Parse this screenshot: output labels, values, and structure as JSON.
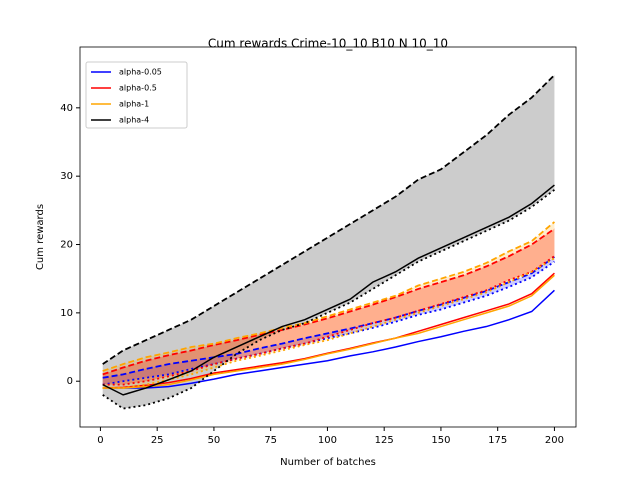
{
  "chart_data": {
    "type": "line",
    "title": "Cum rewards Crime-10_10 B10 N 10_10",
    "x_label": "Number of batches",
    "y_label": "Cum rewards",
    "x": [
      1,
      10,
      20,
      30,
      40,
      50,
      60,
      70,
      80,
      90,
      100,
      110,
      120,
      130,
      140,
      150,
      160,
      170,
      180,
      190,
      200
    ],
    "series": [
      {
        "name": "alpha-0.05",
        "color": "#0000ff",
        "values": [
          -1,
          -1,
          -1,
          -0.8,
          -0.3,
          0.3,
          1,
          1.5,
          2,
          2.5,
          3,
          3.7,
          4.3,
          5,
          5.8,
          6.5,
          7.3,
          8,
          9,
          10.2,
          13.3
        ],
        "upper": [
          0.5,
          1,
          1.8,
          2.5,
          3,
          3.5,
          4,
          4.8,
          5.5,
          6.3,
          7,
          7.7,
          8.5,
          9.3,
          10.3,
          11.2,
          12.2,
          13.2,
          14.5,
          15.8,
          18.2
        ],
        "lower": [
          -0.5,
          0,
          0.5,
          1,
          1.8,
          2.5,
          3.3,
          4,
          4.8,
          5.5,
          6.3,
          7,
          7.8,
          8.7,
          9.7,
          10.5,
          11.5,
          12.5,
          13.8,
          15.2,
          17.5
        ]
      },
      {
        "name": "alpha-0.5",
        "color": "#ff0000",
        "values": [
          -1,
          -0.9,
          -0.6,
          -0.2,
          0.4,
          1.2,
          1.7,
          2.2,
          2.7,
          3.3,
          4.1,
          4.8,
          5.6,
          6.3,
          7.3,
          8.3,
          9.3,
          10.3,
          11.3,
          12.8,
          15.8
        ],
        "upper": [
          1,
          2,
          3,
          3.8,
          4.5,
          5.3,
          6,
          6.8,
          7.5,
          8.3,
          9.2,
          10.2,
          11.2,
          12.3,
          13.5,
          14.5,
          15.5,
          16.8,
          18.3,
          20,
          22.3
        ],
        "lower": [
          -0.5,
          -0.5,
          0,
          0.7,
          1.5,
          2.5,
          3.3,
          4,
          4.8,
          5.5,
          6.5,
          7.5,
          8.5,
          9.3,
          10.3,
          11.3,
          12.3,
          13.3,
          14.8,
          16,
          18.3
        ]
      },
      {
        "name": "alpha-1",
        "color": "#ffa500",
        "values": [
          -1,
          -1,
          -0.8,
          -0.5,
          0.2,
          1,
          1.5,
          2,
          2.5,
          3.2,
          4,
          4.7,
          5.5,
          6.3,
          7,
          8,
          9,
          10,
          11,
          12.5,
          15.5
        ],
        "upper": [
          1.5,
          2.5,
          3.5,
          4.2,
          5,
          5.5,
          6.3,
          7,
          7.8,
          8.5,
          9.5,
          10.5,
          11.5,
          12.5,
          14,
          15,
          16,
          17.3,
          19,
          20.5,
          23.3
        ],
        "lower": [
          -1,
          -1,
          -0.5,
          0.2,
          1,
          2,
          3,
          3.7,
          4.5,
          5.3,
          6,
          7,
          8,
          9,
          10,
          11,
          12,
          13,
          14.5,
          16,
          18
        ]
      },
      {
        "name": "alpha-4",
        "color": "#000000",
        "values": [
          -0.5,
          -2,
          -1,
          0.2,
          1.5,
          3.5,
          5,
          6.5,
          8,
          9,
          10.5,
          12,
          14.5,
          16,
          18,
          19.5,
          21,
          22.5,
          24,
          26,
          28.7
        ],
        "upper": [
          2.5,
          4.5,
          6,
          7.5,
          9,
          11,
          13,
          15,
          17,
          19,
          21,
          23,
          25,
          27,
          29.5,
          31,
          33.5,
          36,
          39,
          41.5,
          44.8
        ],
        "lower": [
          -2,
          -4,
          -3.5,
          -2.5,
          -1,
          1.5,
          4,
          6,
          7.5,
          8.5,
          10,
          11.5,
          13.5,
          15.5,
          17.5,
          19,
          20.5,
          22,
          23.5,
          25.5,
          28
        ]
      }
    ],
    "xlim": [
      -9,
      209.5
    ],
    "ylim": [
      -6.7,
      48.9
    ],
    "xticks": [
      0,
      25,
      50,
      75,
      100,
      125,
      150,
      175,
      200
    ],
    "yticks": [
      0,
      10,
      20,
      30,
      40
    ],
    "legend": "upper left"
  }
}
